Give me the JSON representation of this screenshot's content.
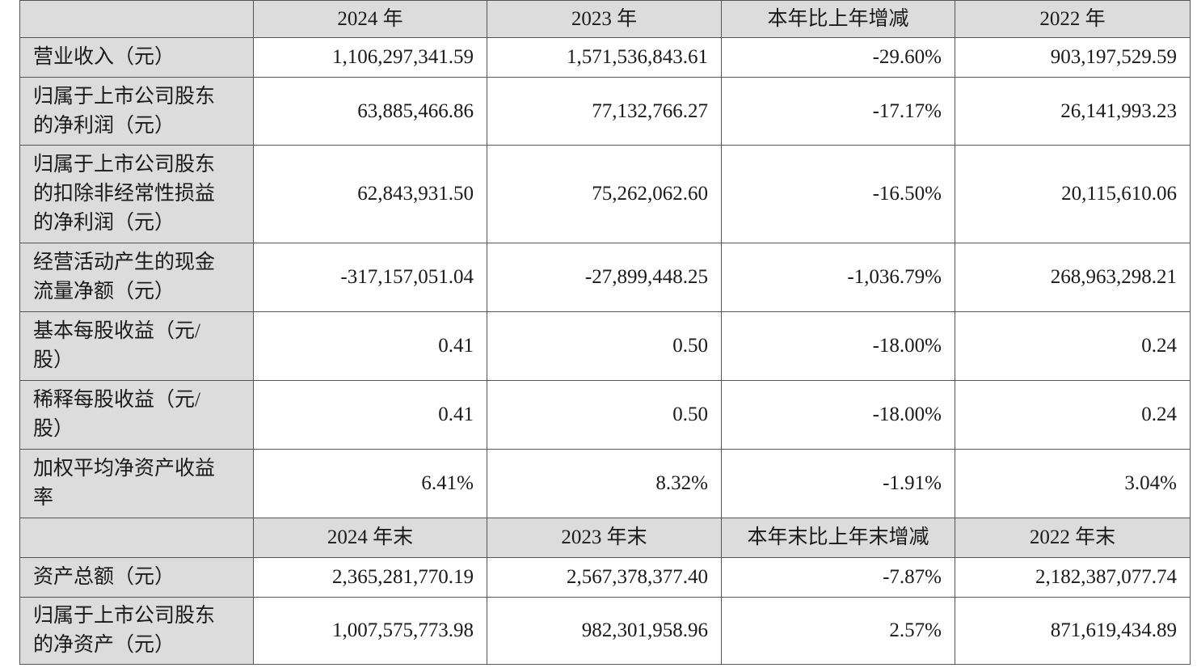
{
  "header1": [
    "",
    "2024 年",
    "2023 年",
    "本年比上年增减",
    "2022 年"
  ],
  "rows1": [
    {
      "label_lines": [
        "营业收入（元）"
      ],
      "values": [
        "1,106,297,341.59",
        "1,571,536,843.61",
        "-29.60%",
        "903,197,529.59"
      ]
    },
    {
      "label_lines": [
        "归属于上市公司股东",
        "的净利润（元）"
      ],
      "values": [
        "63,885,466.86",
        "77,132,766.27",
        "-17.17%",
        "26,141,993.23"
      ]
    },
    {
      "label_lines": [
        "归属于上市公司股东",
        "的扣除非经常性损益",
        "的净利润（元）"
      ],
      "values": [
        "62,843,931.50",
        "75,262,062.60",
        "-16.50%",
        "20,115,610.06"
      ]
    },
    {
      "label_lines": [
        "经营活动产生的现金",
        "流量净额（元）"
      ],
      "values": [
        "-317,157,051.04",
        "-27,899,448.25",
        "-1,036.79%",
        "268,963,298.21"
      ]
    },
    {
      "label_lines": [
        "基本每股收益（元/",
        "股）"
      ],
      "values": [
        "0.41",
        "0.50",
        "-18.00%",
        "0.24"
      ]
    },
    {
      "label_lines": [
        "稀释每股收益（元/",
        "股）"
      ],
      "values": [
        "0.41",
        "0.50",
        "-18.00%",
        "0.24"
      ]
    },
    {
      "label_lines": [
        "加权平均净资产收益",
        "率"
      ],
      "values": [
        "6.41%",
        "8.32%",
        "-1.91%",
        "3.04%"
      ]
    }
  ],
  "header2": [
    "",
    "2024 年末",
    "2023 年末",
    "本年末比上年末增减",
    "2022 年末"
  ],
  "rows2": [
    {
      "label_lines": [
        "资产总额（元）"
      ],
      "values": [
        "2,365,281,770.19",
        "2,567,378,377.40",
        "-7.87%",
        "2,182,387,077.74"
      ]
    },
    {
      "label_lines": [
        "归属于上市公司股东",
        "的净资产（元）"
      ],
      "values": [
        "1,007,575,773.98",
        "982,301,958.96",
        "2.57%",
        "871,619,434.89"
      ]
    }
  ]
}
